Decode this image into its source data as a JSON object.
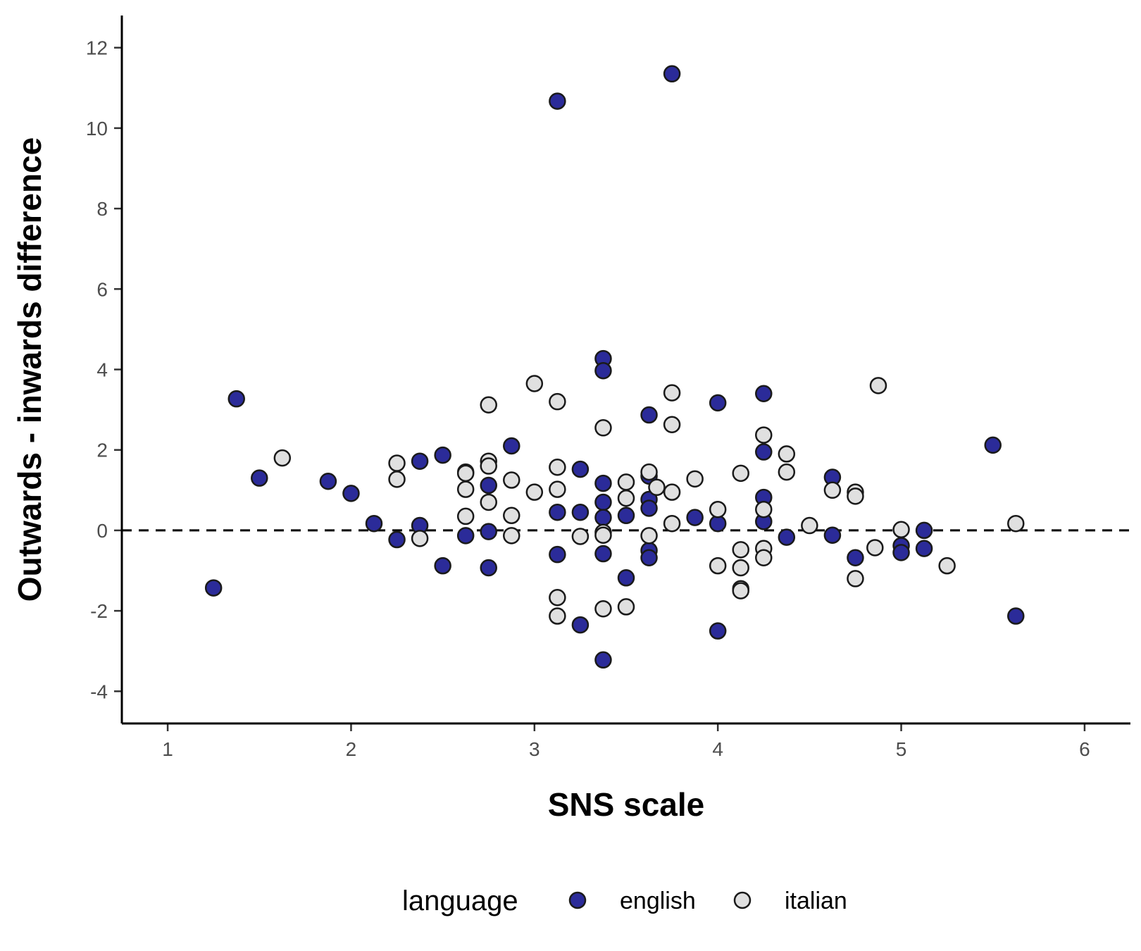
{
  "chart_data": {
    "type": "scatter",
    "title": "",
    "xlabel": "SNS scale",
    "ylabel": "Outwards - inwards difference",
    "xlim": [
      0.75,
      6.25
    ],
    "ylim": [
      -4.8,
      12.8
    ],
    "x_ticks": [
      1,
      2,
      3,
      4,
      5,
      6
    ],
    "x_tick_labels": [
      "1",
      "2",
      "3",
      "4",
      "5",
      "6"
    ],
    "y_ticks": [
      -4,
      -2,
      0,
      2,
      4,
      6,
      8,
      10,
      12
    ],
    "y_tick_labels": [
      "-4",
      "-2",
      "0",
      "2",
      "4",
      "6",
      "8",
      "10",
      "12"
    ],
    "reference_line": {
      "y": 0,
      "style": "dashed"
    },
    "grid": false,
    "legend": {
      "title": "language",
      "position": "bottom"
    },
    "series": [
      {
        "name": "english",
        "color": "#2b2b99",
        "points": [
          [
            1.25,
            -1.43
          ],
          [
            1.375,
            3.27
          ],
          [
            1.5,
            1.3
          ],
          [
            1.875,
            1.22
          ],
          [
            2.0,
            0.92
          ],
          [
            2.125,
            0.17
          ],
          [
            2.25,
            -0.23
          ],
          [
            2.375,
            1.72
          ],
          [
            2.375,
            0.12
          ],
          [
            2.5,
            1.87
          ],
          [
            2.5,
            -0.88
          ],
          [
            2.625,
            -0.13
          ],
          [
            2.75,
            1.12
          ],
          [
            2.75,
            -0.03
          ],
          [
            2.75,
            -0.93
          ],
          [
            2.875,
            2.1
          ],
          [
            3.125,
            10.67
          ],
          [
            3.125,
            0.45
          ],
          [
            3.125,
            -0.6
          ],
          [
            3.25,
            1.52
          ],
          [
            3.25,
            0.45
          ],
          [
            3.25,
            -2.35
          ],
          [
            3.375,
            4.27
          ],
          [
            3.375,
            3.97
          ],
          [
            3.375,
            1.17
          ],
          [
            3.375,
            0.7
          ],
          [
            3.375,
            0.32
          ],
          [
            3.375,
            -0.58
          ],
          [
            3.375,
            -3.22
          ],
          [
            3.5,
            0.37
          ],
          [
            3.5,
            -1.18
          ],
          [
            3.625,
            2.87
          ],
          [
            3.625,
            1.35
          ],
          [
            3.625,
            0.77
          ],
          [
            3.625,
            0.55
          ],
          [
            3.625,
            -0.5
          ],
          [
            3.625,
            -0.68
          ],
          [
            3.75,
            11.35
          ],
          [
            3.875,
            0.32
          ],
          [
            4.0,
            3.17
          ],
          [
            4.0,
            0.17
          ],
          [
            4.0,
            -2.5
          ],
          [
            4.25,
            3.4
          ],
          [
            4.25,
            1.95
          ],
          [
            4.25,
            0.82
          ],
          [
            4.25,
            0.22
          ],
          [
            4.375,
            -0.17
          ],
          [
            4.625,
            1.32
          ],
          [
            4.625,
            -0.12
          ],
          [
            4.75,
            -0.68
          ],
          [
            5.0,
            -0.38
          ],
          [
            5.0,
            -0.55
          ],
          [
            5.125,
            0.0
          ],
          [
            5.125,
            -0.45
          ],
          [
            5.5,
            2.12
          ],
          [
            5.625,
            -2.13
          ]
        ]
      },
      {
        "name": "italian",
        "color": "#e0e0e0",
        "points": [
          [
            1.625,
            1.8
          ],
          [
            2.25,
            1.67
          ],
          [
            2.25,
            1.27
          ],
          [
            2.375,
            -0.2
          ],
          [
            2.625,
            1.45
          ],
          [
            2.625,
            1.42
          ],
          [
            2.625,
            1.02
          ],
          [
            2.625,
            0.35
          ],
          [
            2.75,
            3.12
          ],
          [
            2.75,
            1.72
          ],
          [
            2.75,
            1.6
          ],
          [
            2.75,
            0.7
          ],
          [
            2.875,
            1.25
          ],
          [
            2.875,
            0.37
          ],
          [
            2.875,
            -0.13
          ],
          [
            3.0,
            3.65
          ],
          [
            3.0,
            0.95
          ],
          [
            3.125,
            3.2
          ],
          [
            3.125,
            1.57
          ],
          [
            3.125,
            1.02
          ],
          [
            3.125,
            -1.67
          ],
          [
            3.125,
            -2.13
          ],
          [
            3.25,
            -0.15
          ],
          [
            3.375,
            2.55
          ],
          [
            3.375,
            -0.05
          ],
          [
            3.375,
            -0.12
          ],
          [
            3.375,
            -1.95
          ],
          [
            3.5,
            1.2
          ],
          [
            3.5,
            0.8
          ],
          [
            3.5,
            -1.9
          ],
          [
            3.625,
            1.45
          ],
          [
            3.625,
            -0.13
          ],
          [
            3.667,
            1.07
          ],
          [
            3.75,
            3.42
          ],
          [
            3.75,
            2.63
          ],
          [
            3.75,
            0.95
          ],
          [
            3.75,
            0.17
          ],
          [
            3.875,
            1.28
          ],
          [
            4.0,
            0.52
          ],
          [
            4.0,
            -0.88
          ],
          [
            4.125,
            1.42
          ],
          [
            4.125,
            -0.48
          ],
          [
            4.125,
            -0.93
          ],
          [
            4.125,
            -1.45
          ],
          [
            4.125,
            -1.5
          ],
          [
            4.25,
            2.37
          ],
          [
            4.25,
            0.52
          ],
          [
            4.25,
            -0.45
          ],
          [
            4.25,
            -0.68
          ],
          [
            4.375,
            1.9
          ],
          [
            4.375,
            1.45
          ],
          [
            4.5,
            0.12
          ],
          [
            4.625,
            1.0
          ],
          [
            4.75,
            0.95
          ],
          [
            4.75,
            0.85
          ],
          [
            4.75,
            -1.2
          ],
          [
            4.857,
            -0.43
          ],
          [
            4.875,
            3.6
          ],
          [
            5.0,
            0.02
          ],
          [
            5.25,
            -0.88
          ],
          [
            5.625,
            0.17
          ]
        ]
      }
    ]
  }
}
